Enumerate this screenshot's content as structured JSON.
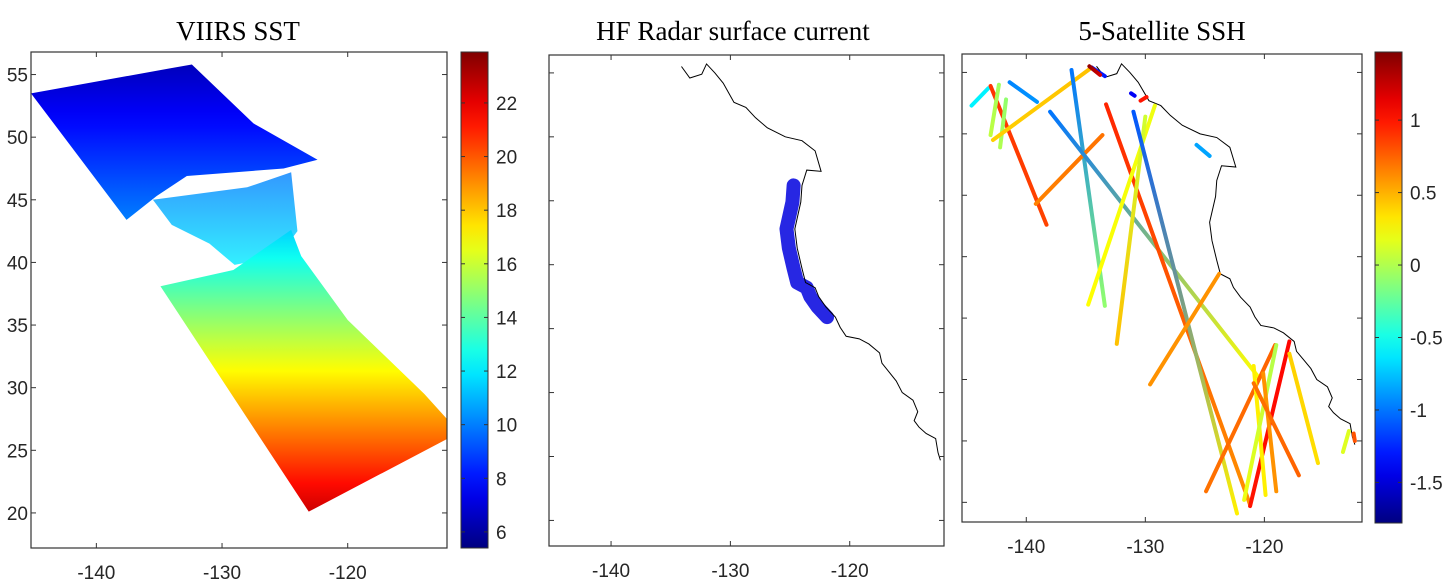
{
  "chart_data": [
    {
      "type": "heatmap",
      "title": "VIIRS SST",
      "xlim": [
        -145.2,
        -112.1
      ],
      "ylim": [
        17.2,
        56.8
      ],
      "xticks": [
        -140,
        -130,
        -120
      ],
      "xtick_labels": [
        "-140",
        "-130",
        "-120"
      ],
      "yticks": [
        20,
        25,
        30,
        35,
        40,
        45,
        50,
        55
      ],
      "ytick_labels": [
        "20",
        "25",
        "30",
        "35",
        "40",
        "45",
        "50",
        "55"
      ],
      "colormap": "jet",
      "colorbar": {
        "range": [
          5.4,
          23.9
        ],
        "ticks": [
          6,
          8,
          10,
          12,
          14,
          16,
          18,
          20,
          22
        ],
        "tick_labels": [
          "6",
          "8",
          "10",
          "12",
          "14",
          "16",
          "18",
          "20",
          "22"
        ]
      },
      "swaths": [
        {
          "polygon": [
            [
              -145.2,
              53.5
            ],
            [
              -134.1,
              55.5
            ],
            [
              -132.4,
              55.8
            ],
            [
              -127.5,
              51.1
            ],
            [
              -122.4,
              48.2
            ],
            [
              -125.1,
              47.5
            ],
            [
              -132.8,
              46.9
            ],
            [
              -135.2,
              45.3
            ],
            [
              -137.6,
              43.4
            ]
          ],
          "value_north": 6.5,
          "value_south": 10
        },
        {
          "polygon": [
            [
              -135.5,
              45.0
            ],
            [
              -128,
              46.0
            ],
            [
              -124.5,
              47.2
            ],
            [
              -124.0,
              42.5
            ],
            [
              -125.5,
              40.5
            ],
            [
              -129,
              39.8
            ],
            [
              -131,
              41.5
            ],
            [
              -134,
              43.0
            ]
          ],
          "value_north": 10,
          "value_south": 12,
          "patchy": true
        },
        {
          "polygon": [
            [
              -134.9,
              38.1
            ],
            [
              -129.1,
              39.4
            ],
            [
              -124.5,
              42.6
            ],
            [
              -123.7,
              40.5
            ],
            [
              -120.0,
              35.4
            ],
            [
              -113.9,
              29.5
            ],
            [
              -112.1,
              27.5
            ],
            [
              -112.1,
              25.9
            ],
            [
              -123.1,
              20.1
            ]
          ],
          "value_north": 11.5,
          "value_south": 22.5
        }
      ]
    },
    {
      "type": "scatter",
      "title": "HF Radar surface current",
      "xlim": [
        -145.2,
        -112.1
      ],
      "ylim": [
        18.0,
        56.4
      ],
      "xticks": [
        -140,
        -130,
        -120
      ],
      "xtick_labels": [
        "-140",
        "-130",
        "-120"
      ],
      "yticks": [
        20,
        25,
        30,
        35,
        40,
        45,
        50,
        55
      ],
      "coverage_lat_range": [
        35.5,
        47.0
      ],
      "coverage_color": "#1010e0"
    },
    {
      "type": "line",
      "title": "5-Satellite SSH",
      "xlim": [
        -145.4,
        -111.8
      ],
      "ylim": [
        18.4,
        56.5
      ],
      "xticks": [
        -140,
        -130,
        -120
      ],
      "xtick_labels": [
        "-140",
        "-130",
        "-120"
      ],
      "yticks": [
        20,
        25,
        30,
        35,
        40,
        45,
        50,
        55
      ],
      "colormap": "jet",
      "colorbar": {
        "range": [
          -1.78,
          1.47
        ],
        "ticks": [
          -1.5,
          -1,
          -0.5,
          0,
          0.5,
          1
        ],
        "tick_labels": [
          "-1.5",
          "-1",
          "-0.5",
          "0",
          "0.5",
          "1"
        ]
      },
      "tracks": [
        {
          "from": [
            -144.6,
            52.3
          ],
          "to": [
            -143.2,
            53.7
          ],
          "v": [
            -0.6,
            -0.6
          ]
        },
        {
          "from": [
            -143.0,
            53.9
          ],
          "to": [
            -138.3,
            42.6
          ],
          "v": [
            0.9,
            0.85
          ]
        },
        {
          "from": [
            -142.3,
            54.0
          ],
          "to": [
            -143.0,
            49.9
          ],
          "v": [
            -0.05,
            0.05
          ]
        },
        {
          "from": [
            -141.7,
            52.8
          ],
          "to": [
            -142.2,
            48.9
          ],
          "v": [
            -0.1,
            0.0
          ]
        },
        {
          "from": [
            -141.4,
            54.2
          ],
          "to": [
            -139.1,
            52.6
          ],
          "v": [
            -0.95,
            -0.9
          ]
        },
        {
          "from": [
            -142.8,
            49.5
          ],
          "to": [
            -134.5,
            55.4
          ],
          "v": [
            0.4,
            0.45
          ]
        },
        {
          "from": [
            -136.2,
            55.2
          ],
          "to": [
            -133.4,
            36.0
          ],
          "v": [
            -1.0,
            -0.1
          ]
        },
        {
          "from": [
            -139.2,
            44.3
          ],
          "to": [
            -133.6,
            49.9
          ],
          "v": [
            0.65,
            0.7
          ]
        },
        {
          "from": [
            -138.0,
            51.8
          ],
          "to": [
            -120.5,
            30.2
          ],
          "v": [
            -1.0,
            0.25
          ]
        },
        {
          "from": [
            -134.5,
            55.4
          ],
          "to": [
            -133.4,
            54.7
          ],
          "v": [
            -1.3,
            -1.3
          ]
        },
        {
          "from": [
            -134.7,
            55.5
          ],
          "to": [
            -133.8,
            54.8
          ],
          "v": [
            1.4,
            1.2
          ]
        },
        {
          "from": [
            -133.3,
            52.4
          ],
          "to": [
            -121.2,
            19.8
          ],
          "v": [
            0.95,
            0.6
          ]
        },
        {
          "from": [
            -129.2,
            52.3
          ],
          "to": [
            -134.8,
            36.1
          ],
          "v": [
            0.2,
            0.25
          ]
        },
        {
          "from": [
            -130.0,
            51.4
          ],
          "to": [
            -132.4,
            32.9
          ],
          "v": [
            0.1,
            0.45
          ]
        },
        {
          "from": [
            -131.0,
            51.8
          ],
          "to": [
            -122.3,
            19.1
          ],
          "v": [
            -1.1,
            0.3
          ]
        },
        {
          "from": [
            -130.4,
            52.7
          ],
          "to": [
            -129.9,
            53.0
          ],
          "v": [
            1.0,
            1.0
          ]
        },
        {
          "from": [
            -131.2,
            53.3
          ],
          "to": [
            -130.9,
            53.1
          ],
          "v": [
            -1.4,
            -1.4
          ]
        },
        {
          "from": [
            -125.7,
            49.1
          ],
          "to": [
            -124.6,
            48.2
          ],
          "v": [
            -0.85,
            -0.85
          ]
        },
        {
          "from": [
            -123.8,
            38.6
          ],
          "to": [
            -129.6,
            29.6
          ],
          "v": [
            0.6,
            0.6
          ]
        },
        {
          "from": [
            -119.1,
            32.8
          ],
          "to": [
            -124.9,
            20.9
          ],
          "v": [
            0.75,
            0.7
          ]
        },
        {
          "from": [
            -117.9,
            33.1
          ],
          "to": [
            -121.2,
            19.7
          ],
          "v": [
            1.05,
            1.0
          ]
        },
        {
          "from": [
            -120.9,
            31.1
          ],
          "to": [
            -119.9,
            20.6
          ],
          "v": [
            0.3,
            0.3
          ]
        },
        {
          "from": [
            -119.0,
            32.8
          ],
          "to": [
            -121.7,
            20.2
          ],
          "v": [
            0.0,
            0.2
          ]
        },
        {
          "from": [
            -117.9,
            32.1
          ],
          "to": [
            -115.5,
            23.2
          ],
          "v": [
            0.4,
            0.35
          ]
        },
        {
          "from": [
            -120.1,
            30.5
          ],
          "to": [
            -119.0,
            20.9
          ],
          "v": [
            0.6,
            0.6
          ]
        },
        {
          "from": [
            -120.9,
            29.7
          ],
          "to": [
            -117.1,
            22.2
          ],
          "v": [
            0.7,
            0.75
          ]
        },
        {
          "from": [
            -112.9,
            25.8
          ],
          "to": [
            -113.4,
            24.1
          ],
          "v": [
            0.15,
            0.15
          ]
        },
        {
          "from": [
            -112.5,
            25.6
          ],
          "to": [
            -112.4,
            25.0
          ],
          "v": [
            0.8,
            0.8
          ]
        }
      ]
    }
  ],
  "coastline": [
    [
      -134.1,
      55.5
    ],
    [
      -133.4,
      54.6
    ],
    [
      -132.4,
      54.9
    ],
    [
      -132.0,
      55.7
    ],
    [
      -131.3,
      55.0
    ],
    [
      -130.6,
      54.2
    ],
    [
      -129.7,
      52.7
    ],
    [
      -128.7,
      52.3
    ],
    [
      -127.9,
      51.5
    ],
    [
      -126.9,
      50.7
    ],
    [
      -125.4,
      50.0
    ],
    [
      -124.0,
      49.7
    ],
    [
      -122.9,
      48.9
    ],
    [
      -122.4,
      47.3
    ],
    [
      -123.6,
      47.4
    ],
    [
      -124.0,
      46.2
    ],
    [
      -124.1,
      44.9
    ],
    [
      -124.6,
      42.8
    ],
    [
      -124.4,
      41.3
    ],
    [
      -124.0,
      39.7
    ],
    [
      -123.7,
      38.6
    ],
    [
      -122.9,
      38.2
    ],
    [
      -122.6,
      37.5
    ],
    [
      -122.0,
      36.7
    ],
    [
      -121.2,
      35.9
    ],
    [
      -120.8,
      35.1
    ],
    [
      -120.3,
      34.4
    ],
    [
      -119.2,
      34.2
    ],
    [
      -118.4,
      33.8
    ],
    [
      -117.5,
      33.1
    ],
    [
      -117.3,
      32.3
    ],
    [
      -116.7,
      31.6
    ],
    [
      -116.1,
      30.9
    ],
    [
      -115.6,
      30.0
    ],
    [
      -114.7,
      29.4
    ],
    [
      -114.3,
      28.5
    ],
    [
      -114.6,
      27.8
    ],
    [
      -114.2,
      27.3
    ],
    [
      -113.6,
      26.8
    ],
    [
      -112.8,
      26.4
    ],
    [
      -112.6,
      25.3
    ],
    [
      -112.4,
      24.7
    ]
  ]
}
